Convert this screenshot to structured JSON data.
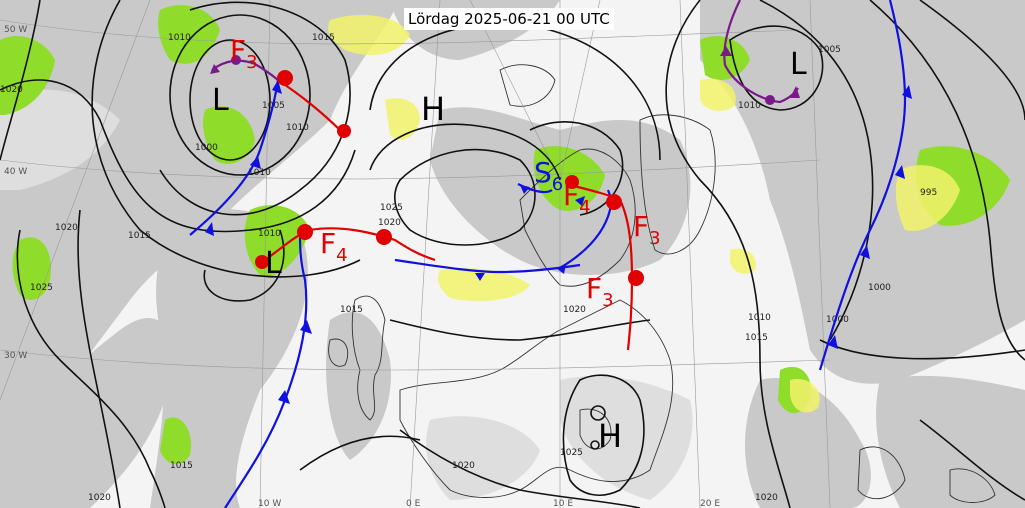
{
  "title": "Lördag 2025-06-21 00 UTC",
  "pressure_systems": [
    {
      "id": "low-1",
      "label": "L"
    },
    {
      "id": "high-1",
      "label": "H"
    },
    {
      "id": "low-2",
      "label": "L"
    },
    {
      "id": "low-3",
      "label": "L"
    },
    {
      "id": "high-2",
      "label": "H"
    }
  ],
  "front_labels": [
    {
      "id": "f1",
      "letter": "F",
      "num": "3",
      "color": "#e00000"
    },
    {
      "id": "f2",
      "letter": "F",
      "num": "4",
      "color": "#e00000"
    },
    {
      "id": "f3",
      "letter": "F",
      "num": "4",
      "color": "#e00000"
    },
    {
      "id": "f4",
      "letter": "F",
      "num": "3",
      "color": "#e00000"
    },
    {
      "id": "f5",
      "letter": "F",
      "num": "3",
      "color": "#e00000"
    },
    {
      "id": "s1",
      "letter": "S",
      "num": "6",
      "color": "#1010e0"
    }
  ],
  "isobar_labels": [
    "1010",
    "1015",
    "1005",
    "1010",
    "1000",
    "1010",
    "1015",
    "1020",
    "1025",
    "1020",
    "1025",
    "1010",
    "1015",
    "1020",
    "1010",
    "1005",
    "995",
    "1000",
    "1000",
    "1010",
    "1015",
    "1020",
    "1020",
    "1025",
    "1020",
    "1015",
    "1020"
  ],
  "coord_labels": [
    "50 W",
    "40 W",
    "30 W",
    "10 W",
    "0 E",
    "10 E",
    "20 E"
  ],
  "colors": {
    "cold_front": "#1010e0",
    "warm_front": "#e00000",
    "occluded_front": "#7a1a8a",
    "precip_light": "#88dd22",
    "precip_yellow": "#f2f26a",
    "cloud": "#c8c8c8"
  }
}
